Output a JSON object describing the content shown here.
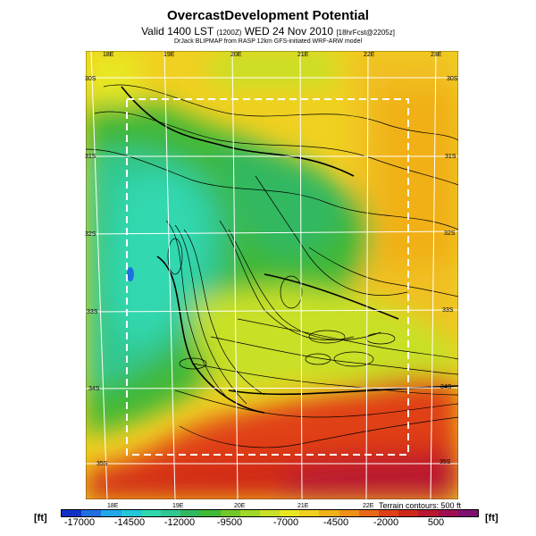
{
  "header": {
    "title": "OvercastDevelopment Potential",
    "subtitle_main": "Valid 1400 LST",
    "subtitle_small": "(1200Z)",
    "subtitle_date": "WED 24 Nov 2010",
    "subtitle_tag": "[18hrFcst@2205z]",
    "credit": "DrJack BLIPMAP from RASP 12km GFS-initiated WRF-ARW model"
  },
  "map": {
    "lon_ticks_top": [
      "18E",
      "19E",
      "20E",
      "21E",
      "22E",
      "23E"
    ],
    "lon_ticks_bottom": [
      "18E",
      "19E",
      "20E",
      "21E",
      "22E"
    ],
    "lat_ticks_left": [
      "30S",
      "31S",
      "32S",
      "33S",
      "34S",
      "35S"
    ],
    "lat_ticks_right": [
      "30S",
      "31S",
      "32S",
      "33S",
      "34S",
      "35S"
    ],
    "terrain_note": "Terrain contours: 500 ft"
  },
  "colorbar": {
    "unit_left": "[ft]",
    "unit_right": "[ft]",
    "labels": [
      "-17000",
      "-14500",
      "-12000",
      "-9500",
      "-7000",
      "-4500",
      "-2000",
      "500"
    ],
    "colors": [
      "#1030c8",
      "#1f6fe0",
      "#20a8e8",
      "#20c8d8",
      "#30d8b0",
      "#30c890",
      "#30b860",
      "#40b838",
      "#70c828",
      "#a0d828",
      "#c8e028",
      "#e8e820",
      "#f0d020",
      "#f0b018",
      "#f09018",
      "#e86818",
      "#e04018",
      "#d02818",
      "#b81830",
      "#a01050",
      "#801070"
    ]
  }
}
